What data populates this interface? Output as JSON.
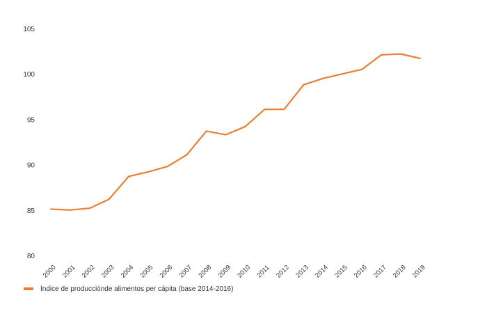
{
  "chart_data": {
    "type": "line",
    "title": "",
    "xlabel": "",
    "ylabel": "",
    "ylim": [
      80,
      105
    ],
    "yticks": [
      80,
      85,
      90,
      95,
      100,
      105
    ],
    "grid": false,
    "legend_position": "bottom-left",
    "categories": [
      "2000",
      "2001",
      "2002",
      "2003",
      "2004",
      "2005",
      "2006",
      "2007",
      "2008",
      "2009",
      "2010",
      "2011",
      "2012",
      "2013",
      "2014",
      "2015",
      "2016",
      "2017",
      "2018",
      "2019"
    ],
    "series": [
      {
        "name": "Índice de producciónde alimentos per cápita (base 2014-2016)",
        "color": "#ED7D31",
        "values": [
          85.1,
          85.0,
          85.2,
          86.2,
          88.7,
          89.2,
          89.8,
          91.1,
          93.7,
          93.3,
          94.2,
          96.1,
          96.1,
          98.8,
          99.5,
          100.0,
          100.5,
          102.1,
          102.2,
          101.7
        ]
      }
    ]
  }
}
